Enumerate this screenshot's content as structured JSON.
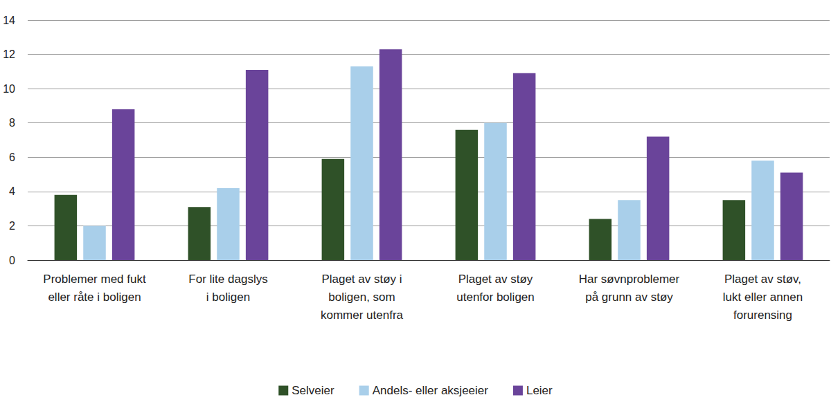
{
  "chart_data": {
    "type": "bar",
    "categories": [
      "Problemer med fukt\neller råte i boligen",
      "For lite dagslys\ni boligen",
      "Plaget av støy i\nboligen, som\nkommer utenfra",
      "Plaget av støy\nutenfor boligen",
      "Har søvnproblemer\npå grunn av støy",
      "Plaget av støv,\nlukt eller annen\nforurensing"
    ],
    "series": [
      {
        "name": "Selveier",
        "color": "#2f5128",
        "values": [
          3.8,
          3.1,
          5.9,
          7.6,
          2.4,
          3.5
        ]
      },
      {
        "name": "Andels- eller aksjeeier",
        "color": "#a9cfea",
        "values": [
          2.0,
          4.2,
          11.3,
          8.0,
          3.5,
          5.8
        ]
      },
      {
        "name": "Leier",
        "color": "#6a449a",
        "values": [
          8.8,
          11.1,
          12.3,
          10.9,
          7.2,
          5.1
        ]
      }
    ],
    "ylim": [
      0,
      14
    ],
    "yticks": [
      0,
      2,
      4,
      6,
      8,
      10,
      12,
      14
    ],
    "grid": true,
    "legend": "bottom"
  }
}
